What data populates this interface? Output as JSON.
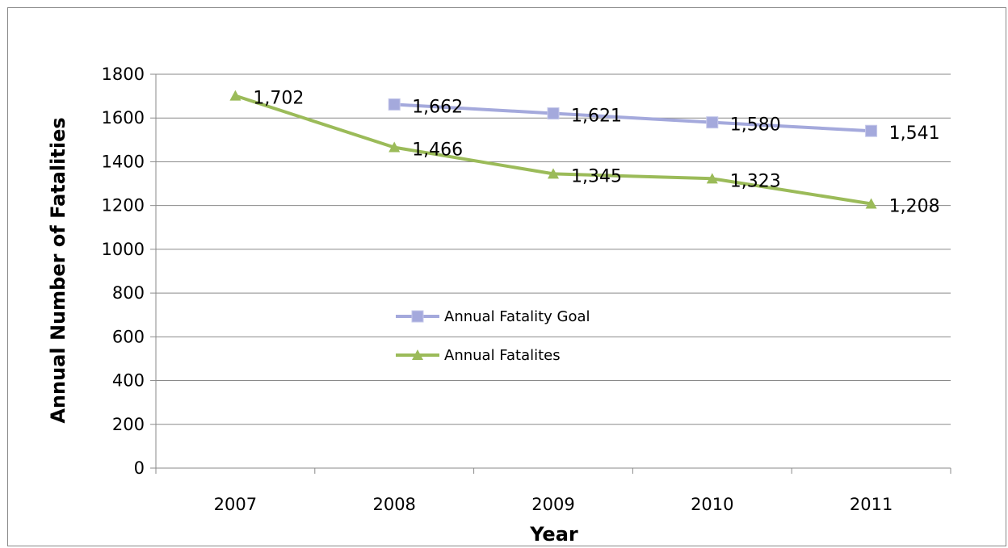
{
  "chart_data": {
    "type": "line",
    "title": "",
    "xlabel": "Year",
    "ylabel": "Annual Number of Fatalities",
    "ylim": [
      0,
      1800
    ],
    "yticks": [
      "0",
      "200",
      "400",
      "600",
      "800",
      "1000",
      "1200",
      "1400",
      "1600",
      "1800"
    ],
    "categories": [
      "2007",
      "2008",
      "2009",
      "2010",
      "2011"
    ],
    "grid": true,
    "legend_position": "center",
    "series": [
      {
        "name": "Annual Fatality Goal",
        "color": "#a4a9dc",
        "marker": "square",
        "values": [
          null,
          1662,
          1621,
          1580,
          1541
        ],
        "labels": [
          null,
          "1,662",
          "1,621",
          "1,580",
          "1,541"
        ]
      },
      {
        "name": "Annual Fatalites",
        "color": "#9bbb59",
        "marker": "triangle",
        "values": [
          1702,
          1466,
          1345,
          1323,
          1208
        ],
        "labels": [
          "1,702",
          "1,466",
          "1,345",
          "1,323",
          "1,208"
        ]
      }
    ]
  }
}
